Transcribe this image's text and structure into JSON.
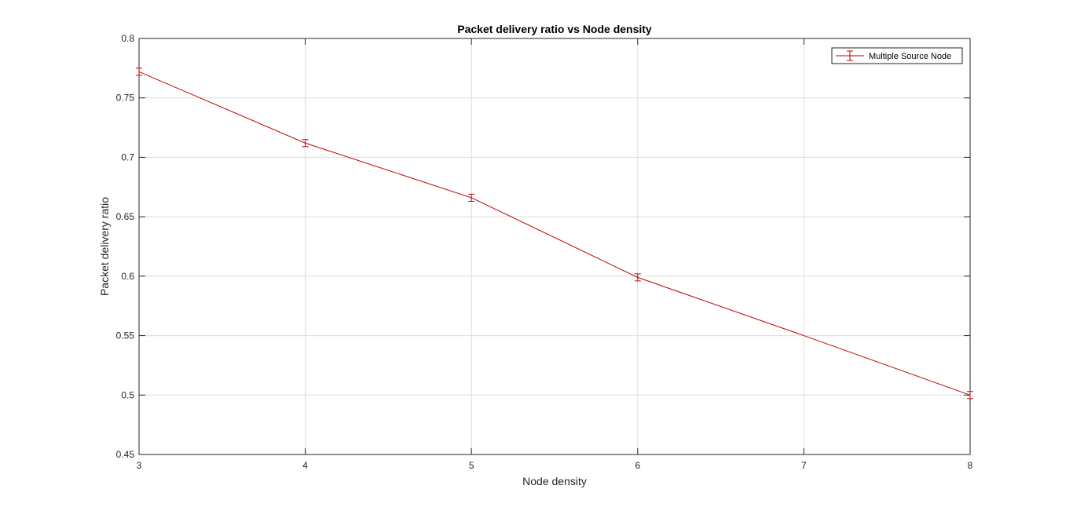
{
  "chart_data": {
    "type": "line",
    "title": "Packet delivery ratio vs Node density",
    "xlabel": "Node density",
    "ylabel": "Packet delivery ratio",
    "xlim": [
      3,
      8
    ],
    "ylim": [
      0.45,
      0.8
    ],
    "xticks": [
      "3",
      "4",
      "5",
      "6",
      "7",
      "8"
    ],
    "yticks": [
      "0.45",
      "0.5",
      "0.55",
      "0.6",
      "0.65",
      "0.7",
      "0.75",
      "0.8"
    ],
    "grid": true,
    "legend_position": "top-right",
    "series": [
      {
        "name": "Multiple Source Node",
        "color": "#c00000",
        "x": [
          3,
          4,
          5,
          6,
          7,
          8
        ],
        "y": [
          0.772,
          0.712,
          0.666,
          0.599,
          0.55,
          0.5
        ],
        "error": [
          0.003,
          0.003,
          0.003,
          0.003,
          null,
          0.003
        ]
      }
    ]
  }
}
